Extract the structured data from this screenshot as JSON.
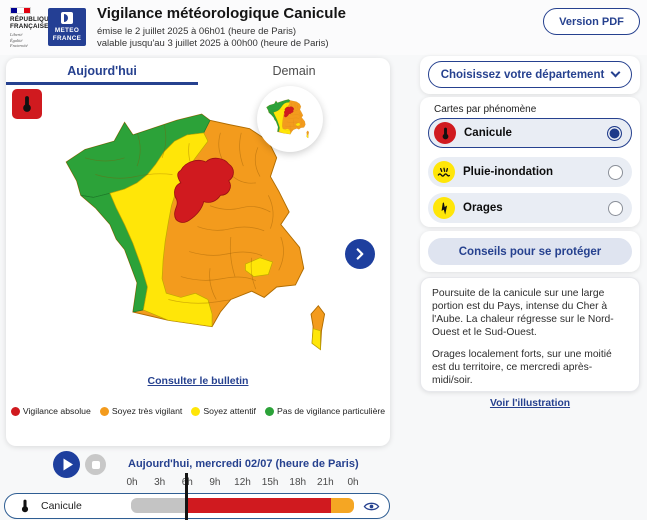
{
  "header": {
    "gov_logo": {
      "line1": "RÉPUBLIQUE",
      "line2": "FRANÇAISE",
      "motto1": "Liberté",
      "motto2": "Égalité",
      "motto3": "Fraternité"
    },
    "meteo_logo": {
      "line1": "METEO",
      "line2": "FRANCE"
    },
    "title": "Vigilance météorologique Canicule",
    "issued": "émise le 2 juillet 2025 à 06h01 (heure de Paris)",
    "valid": "valable jusqu'au 3 juillet 2025 à 00h00 (heure de Paris)",
    "pdf_button": "Version PDF"
  },
  "map_card": {
    "tabs": [
      {
        "label": "Aujourd'hui",
        "active": true
      },
      {
        "label": "Demain",
        "active": false
      }
    ],
    "bulletin_link": "Consulter le bulletin",
    "legend": [
      {
        "label": "Vigilance absolue",
        "color": "#d01a1f"
      },
      {
        "label": "Soyez très vigilant",
        "color": "#f39b1d"
      },
      {
        "label": "Soyez attentif",
        "color": "#ffe608"
      },
      {
        "label": "Pas de vigilance particulière",
        "color": "#2ca239"
      }
    ]
  },
  "sidebar": {
    "department_button": "Choisissez votre département",
    "phenomena_title": "Cartes par phénomène",
    "phenomena": [
      {
        "label": "Canicule",
        "selected": true
      },
      {
        "label": "Pluie-inondation",
        "selected": false
      },
      {
        "label": "Orages",
        "selected": false
      }
    ],
    "advice_button": "Conseils pour se protéger",
    "bulletin_text_1": "Poursuite de la canicule sur une large portion est du Pays, intense du Cher à l'Aube. La chaleur régresse sur le Nord-Ouest et le Sud-Ouest.",
    "bulletin_text_2": "Orages localement forts, sur une moitié est du territoire, ce mercredi après-midi/soir.",
    "illustration_link": "Voir l'illustration"
  },
  "timeline": {
    "date_label": "Aujourd'hui, mercredi 02/07 (heure de Paris)",
    "hours": [
      "0h",
      "3h",
      "6h",
      "9h",
      "12h",
      "15h",
      "18h",
      "21h",
      "0h"
    ],
    "row_label": "Canicule",
    "cursor_hour": "6h",
    "segments": [
      {
        "from_hour": 0,
        "to_hour": 6,
        "color": "#c4c4c4",
        "level": "passé"
      },
      {
        "from_hour": 6,
        "to_hour": 21.5,
        "color": "#d01a1f",
        "level": "rouge"
      },
      {
        "from_hour": 21.5,
        "to_hour": 24,
        "color": "#f5a623",
        "level": "orange"
      }
    ]
  },
  "icons": {
    "canicule": "thermometer-icon",
    "pluie_inondation": "rain-flood-icon",
    "orages": "lightning-icon",
    "next": "chevron-right-icon",
    "department": "chevron-down-icon",
    "play": "play-icon",
    "stop": "stop-icon",
    "visibility": "eye-icon"
  },
  "colors": {
    "primary_blue": "#26418f",
    "vigilance_rouge": "#d01a1f",
    "vigilance_orange": "#f39b1d",
    "vigilance_jaune": "#ffe608",
    "vigilance_vert": "#2ca239"
  }
}
